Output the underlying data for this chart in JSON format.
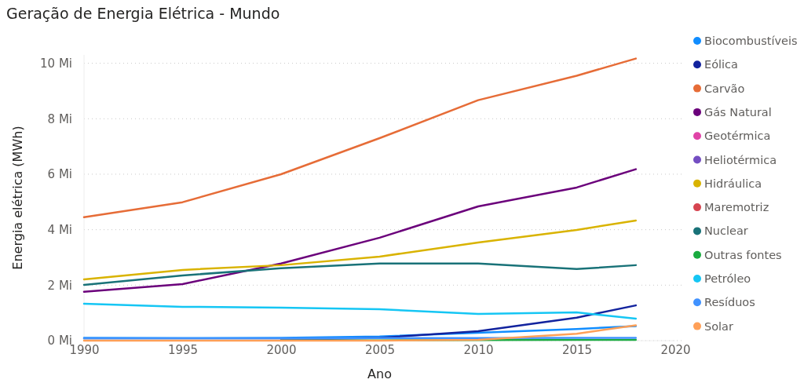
{
  "chart_data": {
    "type": "line",
    "title": "Geração de Energia Elétrica - Mundo",
    "xlabel": "Ano",
    "ylabel": "Energia elétrica (MWh)",
    "x": [
      1990,
      1995,
      2000,
      2005,
      2010,
      2015,
      2018
    ],
    "xlim": [
      1990,
      2020
    ],
    "xticks": [
      1990,
      1995,
      2000,
      2005,
      2010,
      2015,
      2020
    ],
    "ylim": [
      0,
      10.3
    ],
    "yticks": [
      {
        "value": 0,
        "label": "0 Mi"
      },
      {
        "value": 2,
        "label": "2 Mi"
      },
      {
        "value": 4,
        "label": "4 Mi"
      },
      {
        "value": 6,
        "label": "6 Mi"
      },
      {
        "value": 8,
        "label": "8 Mi"
      },
      {
        "value": 10,
        "label": "10 Mi"
      }
    ],
    "grid": "y",
    "legend": "right",
    "marker": "none",
    "line_style": "solid",
    "series": [
      {
        "name": "Biocombustíveis",
        "color": "#118dff",
        "values": [
          0.1,
          0.09,
          0.1,
          0.15,
          0.28,
          0.42,
          0.52
        ]
      },
      {
        "name": "Eólica",
        "color": "#12239e",
        "values": [
          null,
          null,
          0.03,
          0.1,
          0.34,
          0.83,
          1.27
        ]
      },
      {
        "name": "Carvão",
        "color": "#e66c37",
        "values": [
          4.45,
          4.99,
          6.0,
          7.3,
          8.67,
          9.55,
          10.17
        ]
      },
      {
        "name": "Gás Natural",
        "color": "#6b007b",
        "values": [
          1.76,
          2.04,
          2.78,
          3.71,
          4.84,
          5.52,
          6.18
        ]
      },
      {
        "name": "Geotérmica",
        "color": "#e044a7",
        "values": [
          null,
          null,
          null,
          null,
          null,
          null,
          null
        ]
      },
      {
        "name": "Heliotérmica",
        "color": "#744ec2",
        "values": [
          null,
          null,
          null,
          null,
          null,
          null,
          null
        ]
      },
      {
        "name": "Hidráulica",
        "color": "#d9b300",
        "values": [
          2.21,
          2.55,
          2.72,
          3.03,
          3.54,
          3.99,
          4.33
        ]
      },
      {
        "name": "Maremotriz",
        "color": "#d64550",
        "values": [
          null,
          null,
          null,
          null,
          null,
          null,
          null
        ]
      },
      {
        "name": "Nuclear",
        "color": "#197278",
        "values": [
          2.01,
          2.35,
          2.61,
          2.78,
          2.78,
          2.58,
          2.72
        ]
      },
      {
        "name": "Outras fontes",
        "color": "#1aab40",
        "values": [
          null,
          null,
          0.01,
          0.01,
          0.02,
          0.03,
          0.03
        ]
      },
      {
        "name": "Petróleo",
        "color": "#15c6f4",
        "values": [
          1.33,
          1.22,
          1.19,
          1.13,
          0.96,
          1.02,
          0.79
        ]
      },
      {
        "name": "Resíduos",
        "color": "#4092ff",
        "values": [
          0.08,
          0.08,
          0.08,
          0.09,
          0.09,
          0.1,
          0.1
        ]
      },
      {
        "name": "Solar",
        "color": "#ffa058",
        "values": [
          0,
          0,
          0,
          0,
          0.03,
          0.25,
          0.55
        ]
      }
    ]
  }
}
